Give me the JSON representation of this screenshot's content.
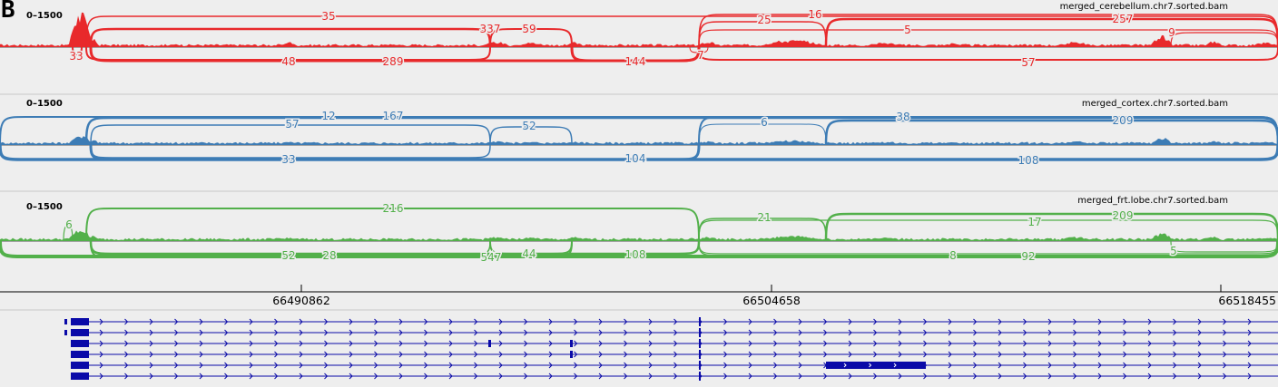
{
  "panel_letter": "B",
  "tracks": [
    {
      "name": "merged_cerebellum.chr7.sorted.bam",
      "range": "0–1500",
      "color": "#e8292b",
      "junction_labels": [
        "35",
        "337",
        "59",
        "25",
        "16",
        "5",
        "257",
        "9",
        "33",
        "48",
        "289",
        "144",
        "7",
        "57"
      ]
    },
    {
      "name": "merged_cortex.chr7.sorted.bam",
      "range": "0–1500",
      "color": "#3d7cb5",
      "junction_labels": [
        "12",
        "167",
        "57",
        "52",
        "6",
        "38",
        "209",
        "33",
        "104",
        "108"
      ]
    },
    {
      "name": "merged_frt.lobe.chr7.sorted.bam",
      "range": "0–1500",
      "color": "#52b04a",
      "junction_labels": [
        "216",
        "6",
        "21",
        "17",
        "209",
        "52",
        "28",
        "547",
        "44",
        "108",
        "8",
        "92",
        "5"
      ]
    }
  ],
  "ruler": {
    "ticks": [
      "66490862",
      "66504658",
      "66518455"
    ]
  },
  "gene_track_color": "#0a0aa8"
}
